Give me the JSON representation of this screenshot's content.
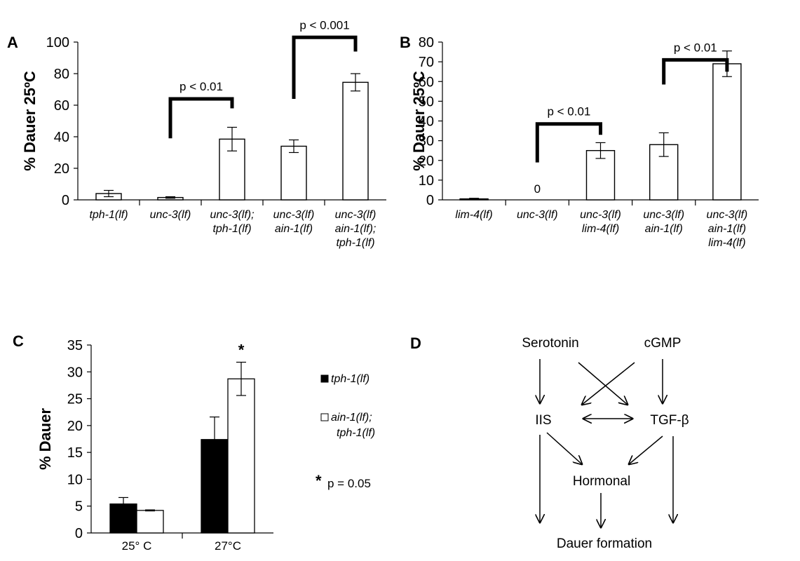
{
  "chart_data": [
    {
      "panel": "A",
      "type": "bar",
      "ylabel": "% Dauer 25ºC",
      "ylim": [
        0,
        100
      ],
      "yticks": [
        0,
        20,
        40,
        60,
        80,
        100
      ],
      "categories": [
        [
          "tph-1(lf)"
        ],
        [
          "unc-3(lf)"
        ],
        [
          "unc-3(lf);",
          "tph-1(lf)"
        ],
        [
          "unc-3(lf)",
          "ain-1(lf)"
        ],
        [
          "unc-3(lf)",
          "ain-1(lf);",
          "tph-1(lf)"
        ]
      ],
      "values": [
        4,
        1.5,
        38.5,
        34,
        74.5
      ],
      "errors": [
        2,
        0.5,
        7.5,
        4,
        5.5
      ],
      "significance": [
        {
          "from": 1,
          "to": 2,
          "label": "p < 0.01"
        },
        {
          "from": 3,
          "to": 4,
          "label": "p < 0.001"
        }
      ]
    },
    {
      "panel": "B",
      "type": "bar",
      "ylabel": "% Dauer 25ºC",
      "ylim": [
        0,
        80
      ],
      "yticks": [
        0,
        10,
        20,
        30,
        40,
        50,
        60,
        70,
        80
      ],
      "categories": [
        [
          "lim-4(lf)"
        ],
        [
          "unc-3(lf)"
        ],
        [
          "unc-3(lf)",
          "lim-4(lf)"
        ],
        [
          "unc-3(lf)",
          "ain-1(lf)"
        ],
        [
          "unc-3(lf)",
          "ain-1(lf)",
          "lim-4(lf)"
        ]
      ],
      "values": [
        0.5,
        0,
        25,
        28,
        69
      ],
      "errors": [
        0.3,
        0,
        4,
        6,
        6.5
      ],
      "value_labels": [
        "",
        "0",
        "",
        "",
        ""
      ],
      "significance": [
        {
          "from": 1,
          "to": 2,
          "label": "p < 0.01"
        },
        {
          "from": 3,
          "to": 4,
          "label": "p < 0.01"
        }
      ]
    },
    {
      "panel": "C",
      "type": "bar",
      "ylabel": "% Dauer",
      "ylim": [
        0,
        35
      ],
      "yticks": [
        0,
        5,
        10,
        15,
        20,
        25,
        30,
        35
      ],
      "categories": [
        "25° C",
        "27°C"
      ],
      "series": [
        {
          "name": "tph-1(lf)",
          "values": [
            5.4,
            17.4
          ],
          "errors": [
            1.2,
            4.2
          ],
          "color": "#000000"
        },
        {
          "name": "ain-1(lf); tph-1(lf)",
          "name_lines": [
            "ain-1(lf);",
            "tph-1(lf)"
          ],
          "values": [
            4.2,
            28.7
          ],
          "errors": [
            0.1,
            3.1
          ],
          "color": "#ffffff"
        }
      ],
      "annotations": {
        "star": "*",
        "star_note": "p = 0.05"
      },
      "legend": "right"
    }
  ],
  "panels": {
    "A": "A",
    "B": "B",
    "C": "C",
    "D": "D"
  },
  "diagram": {
    "nodes": {
      "serotonin": "Serotonin",
      "cgmp": "cGMP",
      "iis": "IIS",
      "tgfb": "TGF-β",
      "hormonal": "Hormonal",
      "dauer": "Dauer formation"
    }
  }
}
